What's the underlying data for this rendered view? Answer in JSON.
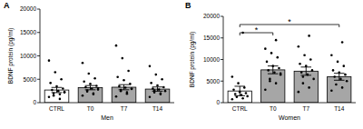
{
  "chart_data": [
    {
      "type": "bar",
      "panel": "A",
      "y_label": "BDNF protein (pg/ml)",
      "x_label": "Men",
      "categories": [
        "CTRL",
        "T0",
        "T7",
        "T14"
      ],
      "values": [
        2700,
        3200,
        3300,
        2900
      ],
      "errors": [
        550,
        450,
        550,
        450
      ],
      "colors": [
        "#ffffff",
        "#a6a6a6",
        "#a6a6a6",
        "#a6a6a6"
      ],
      "points": [
        [
          1200,
          1800,
          2000,
          2300,
          2500,
          2700,
          3000,
          3500,
          4200,
          5000,
          6500,
          9000,
          800,
          1500,
          2200
        ],
        [
          1500,
          2000,
          2400,
          2800,
          3000,
          3300,
          3600,
          4000,
          4500,
          5200,
          6200,
          8500,
          1800,
          2600,
          3100
        ],
        [
          1300,
          1900,
          2500,
          2900,
          3200,
          3500,
          4000,
          4800,
          5500,
          6800,
          9500,
          12200,
          2200,
          2700,
          3000
        ],
        [
          1200,
          1800,
          2200,
          2500,
          2800,
          3000,
          3300,
          3700,
          4200,
          5000,
          6000,
          7800,
          2000,
          2600
        ]
      ],
      "ylim": [
        0,
        20000
      ],
      "yticks": [
        0,
        5000,
        10000,
        15000,
        20000
      ]
    },
    {
      "type": "bar",
      "panel": "B",
      "y_label": "BDNF protein (pg/ml)",
      "x_label": "Women",
      "categories": [
        "CTRL",
        "T0",
        "T7",
        "T14"
      ],
      "values": [
        2700,
        7600,
        7300,
        6000
      ],
      "errors": [
        1100,
        900,
        950,
        800
      ],
      "colors": [
        "#ffffff",
        "#a6a6a6",
        "#a6a6a6",
        "#a6a6a6"
      ],
      "points": [
        [
          800,
          1000,
          1300,
          1500,
          1800,
          2000,
          2200,
          2500,
          3000,
          3500,
          4500,
          6000,
          16200
        ],
        [
          3000,
          4500,
          5500,
          6500,
          7000,
          7500,
          8000,
          8500,
          9500,
          10500,
          11500,
          12500,
          14500,
          5000,
          6800
        ],
        [
          2500,
          3500,
          4500,
          5500,
          6500,
          7000,
          7500,
          8500,
          9000,
          10000,
          11000,
          13000,
          15500,
          6000
        ],
        [
          2800,
          3500,
          4200,
          5000,
          5500,
          6000,
          6500,
          7000,
          7500,
          8500,
          9500,
          11000,
          14000
        ]
      ],
      "annotations": [
        {
          "from": "CTRL",
          "to": "T0",
          "label": "*"
        },
        {
          "from": "CTRL",
          "to": "T14",
          "label": "*"
        }
      ],
      "ylim": [
        0,
        20000
      ],
      "yticks": [
        0,
        5000,
        10000,
        15000,
        20000
      ]
    }
  ]
}
